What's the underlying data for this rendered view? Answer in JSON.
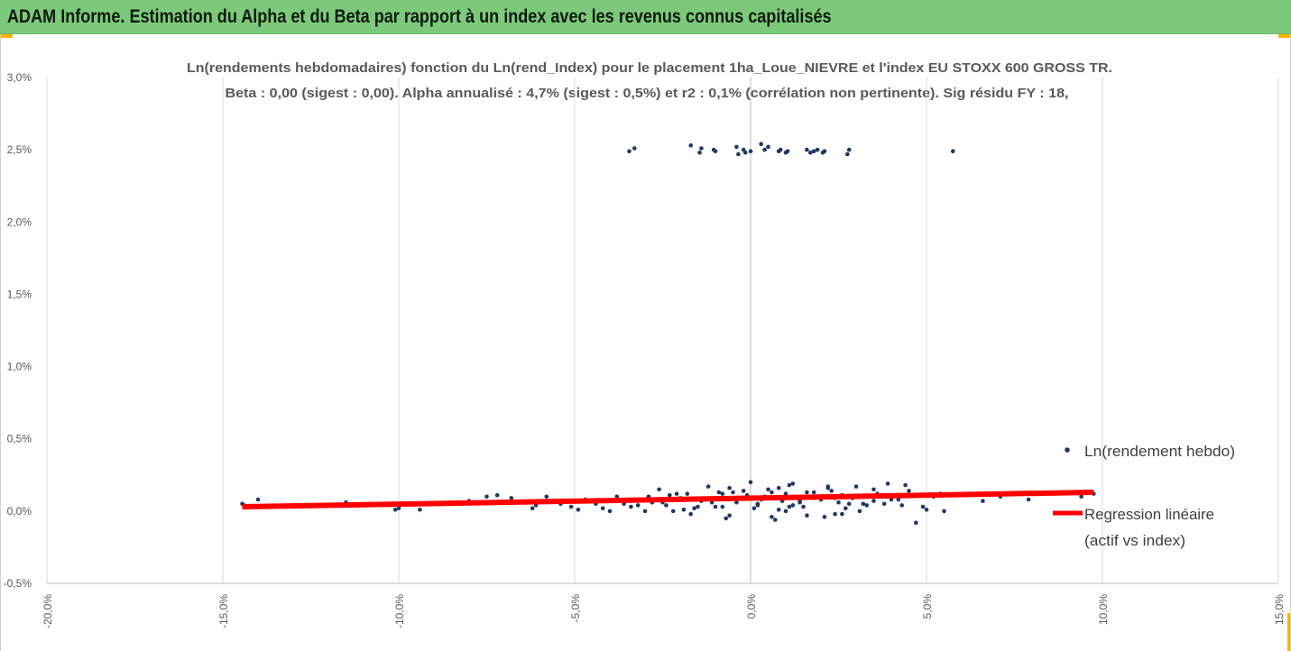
{
  "banner": {
    "title": "ADAM Informe. Estimation du Alpha et du Beta par rapport à un index avec les revenus connus capitalisés"
  },
  "colors": {
    "banner": "#7dc97b",
    "corner_accent": "#f2b705",
    "points": "#1f3864",
    "regression": "#ff0000",
    "grid": "#d9d9d9"
  },
  "chart_data": {
    "type": "scatter",
    "title": "Ln(rendements hebdomadaires) fonction du Ln(rend_Index) pour le placement 1ha_Loue_NIEVRE et l'index EU STOXX 600 GROSS TR.",
    "subtitle": "Beta : 0,00 (sigest : 0,00). Alpha annualisé : 4,7% (sigest : 0,5%) et r2 : 0,1% (corrélation non pertinente). Sig résidu FY : 18,",
    "xlim": [
      -0.2,
      0.15
    ],
    "ylim": [
      -0.005,
      0.03
    ],
    "x_ticks": [
      "-20,0%",
      "-15,0%",
      "-10,0%",
      "-5,0%",
      "0,0%",
      "5,0%",
      "10,0%",
      "15,0%"
    ],
    "x_tick_values": [
      -0.2,
      -0.15,
      -0.1,
      -0.05,
      0.0,
      0.05,
      0.1,
      0.15
    ],
    "y_ticks": [
      "-0,5%",
      "0,0%",
      "0,5%",
      "1,0%",
      "1,5%",
      "2,0%",
      "2,5%",
      "3,0%"
    ],
    "y_tick_values": [
      -0.005,
      0.0,
      0.005,
      0.01,
      0.015,
      0.02,
      0.025,
      0.03
    ],
    "grid": {
      "vertical": true,
      "horizontal": false
    },
    "legend": {
      "placement": "right",
      "entries": [
        "Ln(rendement hebdo)",
        "Regression linéaire",
        "(actif vs index)"
      ]
    },
    "regression": {
      "x": [
        -0.1445,
        0.0975
      ],
      "y": [
        0.0003,
        0.0013
      ]
    },
    "series": [
      {
        "name": "Ln(rendement hebdo)",
        "x": [
          -0.0345,
          -0.033,
          -0.017,
          -0.0145,
          -0.014,
          -0.0105,
          -0.01,
          -0.004,
          -0.0035,
          -0.002,
          -0.0015,
          0.0,
          0.003,
          0.004,
          0.005,
          0.008,
          0.0085,
          0.01,
          0.0105,
          0.016,
          0.017,
          0.018,
          0.019,
          0.0205,
          0.021,
          0.0275,
          0.028,
          0.0575,
          -0.1445,
          -0.144,
          -0.14,
          -0.115,
          -0.101,
          -0.1,
          -0.094,
          -0.088,
          -0.085,
          -0.08,
          -0.075,
          -0.072,
          -0.068,
          -0.064,
          -0.062,
          -0.061,
          -0.058,
          -0.054,
          -0.051,
          -0.049,
          -0.047,
          -0.044,
          -0.042,
          -0.04,
          -0.038,
          -0.036,
          -0.034,
          -0.032,
          -0.03,
          -0.028,
          -0.026,
          -0.024,
          -0.022,
          -0.02,
          -0.018,
          -0.016,
          -0.014,
          -0.012,
          -0.01,
          -0.008,
          -0.006,
          -0.004,
          -0.002,
          0.0,
          0.002,
          0.004,
          0.006,
          0.008,
          0.01,
          0.012,
          0.014,
          0.016,
          0.018,
          0.02,
          0.022,
          0.024,
          0.026,
          0.028,
          0.03,
          0.033,
          0.036,
          0.039,
          0.042,
          0.045,
          0.049,
          0.052,
          0.055,
          0.06,
          0.066,
          0.071,
          0.079,
          0.081,
          0.094,
          0.0975,
          -0.032,
          -0.029,
          -0.025,
          -0.021,
          -0.019,
          -0.013,
          -0.009,
          -0.007,
          -0.003,
          0.001,
          0.005,
          0.007,
          0.009,
          0.011,
          0.015,
          0.017,
          0.021,
          0.023,
          0.025,
          0.029,
          0.031,
          0.035,
          0.038,
          0.041,
          0.044,
          0.047,
          -0.023,
          -0.017,
          -0.011,
          -0.005,
          0.003,
          0.011,
          0.019,
          0.027,
          0.035,
          0.043,
          0.05,
          0.054,
          -0.015,
          -0.006,
          0.002,
          0.01,
          0.018,
          0.026,
          -0.008,
          0.006,
          0.014,
          0.022,
          -0.001,
          0.012,
          0.024,
          0.008,
          0.016,
          0.032,
          0.04
        ],
        "y": [
          0.0249,
          0.0251,
          0.0253,
          0.0248,
          0.0251,
          0.025,
          0.0249,
          0.0252,
          0.0247,
          0.025,
          0.0248,
          0.0249,
          0.0254,
          0.025,
          0.0252,
          0.0249,
          0.025,
          0.0248,
          0.0249,
          0.025,
          0.0248,
          0.0249,
          0.025,
          0.0248,
          0.0249,
          0.0247,
          0.025,
          0.0249,
          0.0005,
          0.0004,
          0.0008,
          0.0006,
          0.0001,
          0.0002,
          0.0001,
          0.0005,
          0.0006,
          0.0007,
          0.001,
          0.0011,
          0.0009,
          0.0006,
          0.0002,
          0.0004,
          0.001,
          0.0005,
          0.0003,
          0.0001,
          0.0008,
          0.0005,
          0.0002,
          0.0,
          0.001,
          0.0005,
          0.0003,
          0.0008,
          0.0,
          0.0006,
          0.0015,
          0.0004,
          0.0,
          0.0009,
          0.0012,
          0.0002,
          0.0007,
          0.0017,
          0.0003,
          0.0012,
          -0.0003,
          0.0006,
          0.0014,
          0.002,
          0.0004,
          0.001,
          -0.0004,
          0.0016,
          0.0,
          0.0019,
          0.0006,
          -0.0003,
          0.0013,
          0.0008,
          0.0016,
          -0.0002,
          0.0011,
          0.0005,
          0.0017,
          0.0004,
          0.0012,
          0.0019,
          0.0008,
          0.0014,
          0.0003,
          0.001,
          0.0,
          0.0011,
          0.0007,
          0.001,
          0.0008,
          0.0012,
          0.001,
          0.0012,
          0.0004,
          0.001,
          0.0006,
          0.0012,
          0.0001,
          0.0008,
          0.0013,
          -0.0005,
          0.0009,
          0.0002,
          0.0015,
          -0.0006,
          0.0007,
          0.0018,
          0.0003,
          0.001,
          -0.0004,
          0.0014,
          0.0006,
          0.0009,
          0.0,
          0.0015,
          0.0005,
          0.0011,
          0.0018,
          -0.0008,
          0.0011,
          -0.0002,
          0.0006,
          0.0013,
          0.0008,
          0.0003,
          0.001,
          0.0002,
          0.0007,
          0.0004,
          0.0001,
          0.0012,
          0.0003,
          0.0016,
          0.0005,
          0.0012,
          0.0009,
          -0.0002,
          0.0003,
          0.0013,
          0.0007,
          0.0017,
          0.0011,
          0.0004,
          0.0009,
          0.0001,
          0.0013,
          0.0005,
          0.0008
        ]
      }
    ]
  }
}
